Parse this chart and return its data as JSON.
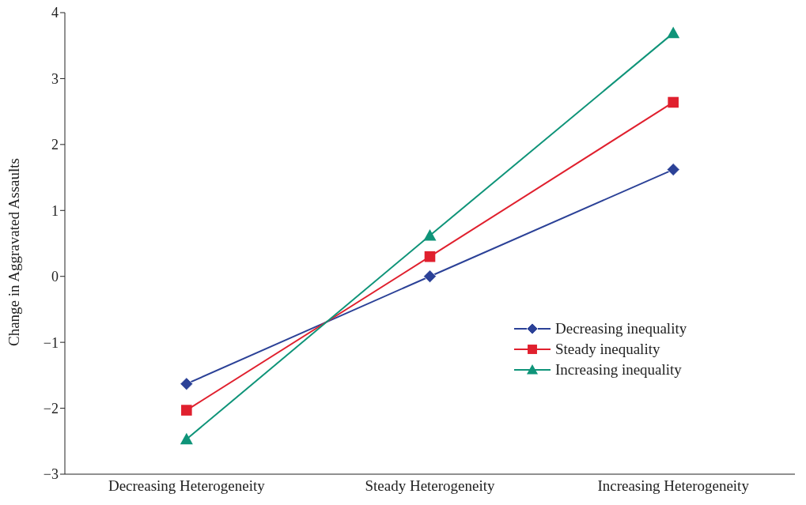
{
  "chart_data": {
    "type": "line",
    "ylabel": "Change in Aggravated Assaults",
    "categories": [
      "Decreasing Heterogeneity",
      "Steady Heterogeneity",
      "Increasing Heterogeneity"
    ],
    "series": [
      {
        "name": "Decreasing inequality",
        "color": "#2b4197",
        "values": [
          -1.63,
          0,
          1.62
        ],
        "marker": "diamond"
      },
      {
        "name": "Steady inequality",
        "color": "#e0202e",
        "values": [
          -2.03,
          0.3,
          2.64
        ],
        "marker": "square"
      },
      {
        "name": "Increasing inequality",
        "color": "#0f9479",
        "values": [
          -2.47,
          0.62,
          3.69
        ],
        "marker": "triangle"
      }
    ],
    "ylim": [
      -3,
      4
    ],
    "yticks": [
      {
        "value": -3,
        "label": "−3"
      },
      {
        "value": -2,
        "label": "−2"
      },
      {
        "value": -1,
        "label": "−1"
      },
      0,
      1,
      2,
      3,
      4
    ],
    "grid": false,
    "legend": "right",
    "line_style": "solid"
  }
}
